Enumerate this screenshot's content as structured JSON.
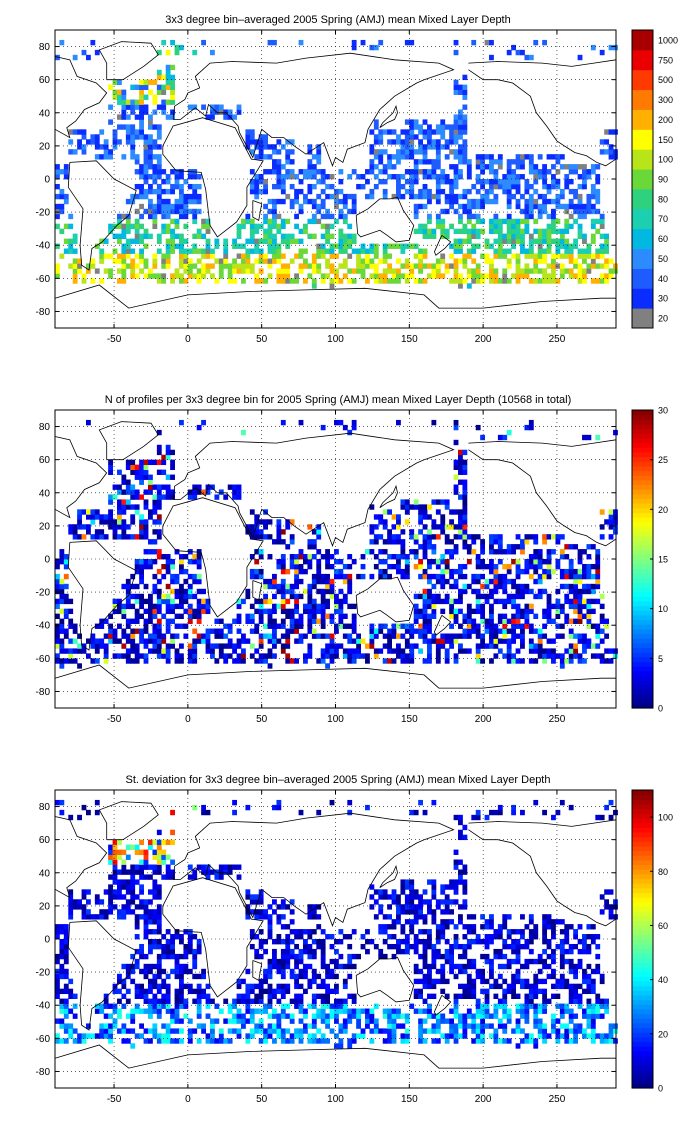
{
  "chart_data": [
    {
      "type": "heatmap",
      "title": "3x3 degree bin–averaged 2005 Spring (AMJ) mean Mixed Layer Depth",
      "xlabel": "",
      "ylabel": "",
      "xlim": [
        -90,
        290
      ],
      "ylim": [
        -90,
        90
      ],
      "x_ticks": [
        "-50",
        "0",
        "50",
        "100",
        "150",
        "200",
        "250"
      ],
      "y_ticks": [
        "80",
        "60",
        "40",
        "20",
        "0",
        "-20",
        "-40",
        "-60",
        "-80"
      ],
      "grid": true,
      "colorbar": {
        "scale": "categorical",
        "labels": [
          "20",
          "30",
          "40",
          "50",
          "60",
          "70",
          "80",
          "90",
          "100",
          "150",
          "200",
          "300",
          "500",
          "750",
          "1000"
        ],
        "colors": [
          "#808080",
          "#0a2cff",
          "#1f5cff",
          "#2c8cff",
          "#00b8e0",
          "#1ccfb0",
          "#2ed17d",
          "#6bd83a",
          "#b8e41a",
          "#ffff00",
          "#ffb000",
          "#ff7a00",
          "#ff3a00",
          "#ea0000",
          "#a80000"
        ]
      },
      "field_description": "global ocean 3x3 degree bins of mean mixed layer depth"
    },
    {
      "type": "heatmap",
      "title": "N of profiles per 3x3 degree bin for 2005 Spring (AMJ) mean Mixed Layer Depth  (10568 in total)",
      "xlabel": "",
      "ylabel": "",
      "xlim": [
        -90,
        290
      ],
      "ylim": [
        -90,
        90
      ],
      "x_ticks": [
        "-50",
        "0",
        "50",
        "100",
        "150",
        "200",
        "250"
      ],
      "y_ticks": [
        "80",
        "60",
        "40",
        "20",
        "0",
        "-20",
        "-40",
        "-60",
        "-80"
      ],
      "grid": true,
      "colorbar": {
        "scale": "linear",
        "min": 0,
        "max": 30,
        "labels": [
          "0",
          "5",
          "10",
          "15",
          "20",
          "25",
          "30"
        ],
        "colormap": "jet"
      }
    },
    {
      "type": "heatmap",
      "title": "St. deviation for 3x3 degree bin–averaged 2005 Spring (AMJ) mean Mixed Layer Depth",
      "xlabel": "",
      "ylabel": "",
      "xlim": [
        -90,
        290
      ],
      "ylim": [
        -90,
        90
      ],
      "x_ticks": [
        "-50",
        "0",
        "50",
        "100",
        "150",
        "200",
        "250"
      ],
      "y_ticks": [
        "80",
        "60",
        "40",
        "20",
        "0",
        "-20",
        "-40",
        "-60",
        "-80"
      ],
      "grid": true,
      "colorbar": {
        "scale": "linear",
        "min": 0,
        "max": 110,
        "labels": [
          "0",
          "20",
          "40",
          "60",
          "80",
          "100"
        ],
        "colormap": "jet"
      }
    }
  ]
}
